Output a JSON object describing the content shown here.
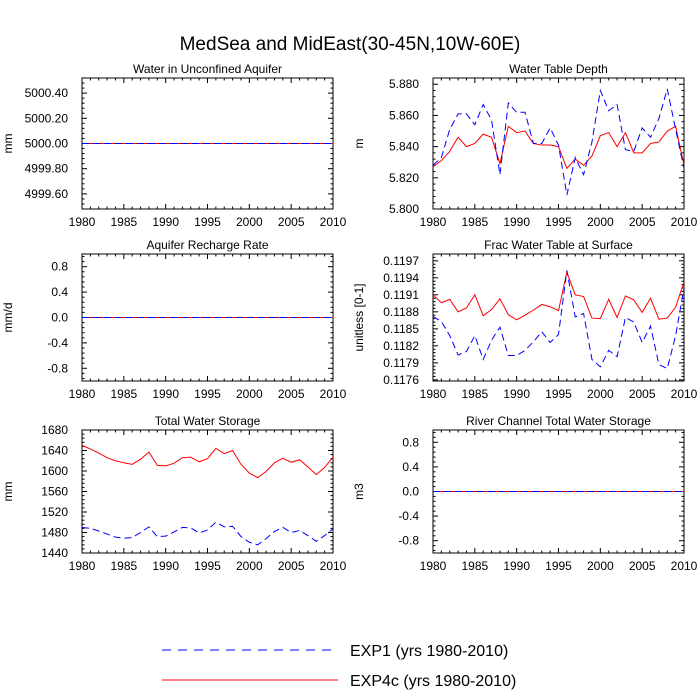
{
  "title": "MedSea and MidEast(30-45N,10W-60E)",
  "colors": {
    "exp1": "#0000ff",
    "exp4c": "#ff0000",
    "axis": "#000000"
  },
  "legend": {
    "items": [
      {
        "label": "EXP1 (yrs 1980-2010)",
        "color": "#0000ff",
        "style": "dashed"
      },
      {
        "label": "EXP4c (yrs 1980-2010)",
        "color": "#ff0000",
        "style": "solid"
      }
    ]
  },
  "chart_data": [
    {
      "type": "line",
      "title": "Water in Unconfined Aquifer",
      "xlabel": "",
      "ylabel": "mm",
      "xlim": [
        1980,
        2010
      ],
      "ylim": [
        4999.48,
        5000.52
      ],
      "xticks": [
        "1980",
        "1985",
        "1990",
        "1995",
        "2000",
        "2005",
        "2010"
      ],
      "yticks": [
        "4999.60",
        "4999.80",
        "5000.00",
        "5000.20",
        "5000.40"
      ],
      "x": [
        1980,
        2010
      ],
      "series": [
        {
          "name": "EXP1 (yrs 1980-2010)",
          "values": [
            5000.0,
            5000.0
          ]
        },
        {
          "name": "EXP4c (yrs 1980-2010)",
          "values": [
            5000.0,
            5000.0
          ]
        }
      ]
    },
    {
      "type": "line",
      "title": "Water Table Depth",
      "xlabel": "",
      "ylabel": "m",
      "xlim": [
        1980,
        2010
      ],
      "ylim": [
        5.8,
        5.884
      ],
      "xticks": [
        "1980",
        "1985",
        "1990",
        "1995",
        "2000",
        "2005",
        "2010"
      ],
      "yticks": [
        "5.800",
        "5.820",
        "5.840",
        "5.860",
        "5.880"
      ],
      "x": [
        1980,
        1981,
        1982,
        1983,
        1984,
        1985,
        1986,
        1987,
        1988,
        1989,
        1990,
        1991,
        1992,
        1993,
        1994,
        1995,
        1996,
        1997,
        1998,
        1999,
        2000,
        2001,
        2002,
        2003,
        2004,
        2005,
        2006,
        2007,
        2008,
        2009,
        2010
      ],
      "series": [
        {
          "name": "EXP1 (yrs 1980-2010)",
          "values": [
            5.828,
            5.833,
            5.851,
            5.861,
            5.861,
            5.854,
            5.867,
            5.857,
            5.822,
            5.868,
            5.862,
            5.862,
            5.842,
            5.842,
            5.852,
            5.841,
            5.809,
            5.833,
            5.822,
            5.843,
            5.876,
            5.863,
            5.867,
            5.838,
            5.837,
            5.852,
            5.846,
            5.858,
            5.877,
            5.851,
            5.826
          ]
        },
        {
          "name": "EXP4c (yrs 1980-2010)",
          "values": [
            5.827,
            5.831,
            5.837,
            5.846,
            5.84,
            5.842,
            5.848,
            5.846,
            5.829,
            5.853,
            5.849,
            5.85,
            5.842,
            5.841,
            5.841,
            5.84,
            5.826,
            5.832,
            5.828,
            5.834,
            5.847,
            5.849,
            5.84,
            5.849,
            5.836,
            5.836,
            5.842,
            5.843,
            5.85,
            5.853,
            5.828
          ]
        }
      ]
    },
    {
      "type": "line",
      "title": "Aquifer Recharge Rate",
      "xlabel": "",
      "ylabel": "mm/d",
      "xlim": [
        1980,
        2010
      ],
      "ylim": [
        -1.0,
        1.0
      ],
      "xticks": [
        "1980",
        "1985",
        "1990",
        "1995",
        "2000",
        "2005",
        "2010"
      ],
      "yticks": [
        "-0.8",
        "-0.4",
        "0.0",
        "0.4",
        "0.8"
      ],
      "x": [
        1980,
        2010
      ],
      "series": [
        {
          "name": "EXP1 (yrs 1980-2010)",
          "values": [
            0.0,
            0.0
          ]
        },
        {
          "name": "EXP4c (yrs 1980-2010)",
          "values": [
            0.0,
            0.0
          ]
        }
      ]
    },
    {
      "type": "line",
      "title": "Frac Water Table at Surface",
      "xlabel": "",
      "ylabel": "unitless [0-1]",
      "xlim": [
        1980,
        2010
      ],
      "ylim": [
        0.11758,
        0.11982
      ],
      "xticks": [
        "1980",
        "1985",
        "1990",
        "1995",
        "2000",
        "2005",
        "2010"
      ],
      "yticks": [
        "0.1176",
        "0.1179",
        "0.1182",
        "0.1185",
        "0.1188",
        "0.1191",
        "0.1194",
        "0.1197"
      ],
      "x": [
        1980,
        1981,
        1982,
        1983,
        1984,
        1985,
        1986,
        1987,
        1988,
        1989,
        1990,
        1991,
        1992,
        1993,
        1994,
        1995,
        1996,
        1997,
        1998,
        1999,
        2000,
        2001,
        2002,
        2003,
        2004,
        2005,
        2006,
        2007,
        2008,
        2009,
        2010
      ],
      "series": [
        {
          "name": "EXP1 (yrs 1980-2010)",
          "values": [
            0.11872,
            0.11863,
            0.11838,
            0.11804,
            0.1181,
            0.11838,
            0.11796,
            0.1183,
            0.11853,
            0.11803,
            0.11803,
            0.11812,
            0.11827,
            0.11845,
            0.11826,
            0.1184,
            0.11953,
            0.11871,
            0.11877,
            0.11796,
            0.11783,
            0.11812,
            0.11801,
            0.1187,
            0.11862,
            0.11826,
            0.11855,
            0.11787,
            0.1178,
            0.11838,
            0.11922
          ]
        },
        {
          "name": "EXP4c (yrs 1980-2010)",
          "values": [
            0.1191,
            0.11896,
            0.11902,
            0.1188,
            0.11887,
            0.1191,
            0.11873,
            0.11884,
            0.11903,
            0.11875,
            0.11866,
            0.11874,
            0.11883,
            0.11893,
            0.11889,
            0.11882,
            0.1195,
            0.1191,
            0.11907,
            0.11869,
            0.11868,
            0.11902,
            0.1187,
            0.11908,
            0.11901,
            0.11879,
            0.11904,
            0.11867,
            0.11869,
            0.11888,
            0.11933
          ]
        }
      ]
    },
    {
      "type": "line",
      "title": "Total Water Storage",
      "xlabel": "",
      "ylabel": "mm",
      "xlim": [
        1980,
        2010
      ],
      "ylim": [
        1440,
        1680
      ],
      "xticks": [
        "1980",
        "1985",
        "1990",
        "1995",
        "2000",
        "2005",
        "2010"
      ],
      "yticks": [
        "1440",
        "1480",
        "1520",
        "1560",
        "1600",
        "1640",
        "1680"
      ],
      "x": [
        1980,
        1981,
        1982,
        1983,
        1984,
        1985,
        1986,
        1987,
        1988,
        1989,
        1990,
        1991,
        1992,
        1993,
        1994,
        1995,
        1996,
        1997,
        1998,
        1999,
        2000,
        2001,
        2002,
        2003,
        2004,
        2005,
        2006,
        2007,
        2008,
        2009,
        2010
      ],
      "series": [
        {
          "name": "EXP1 (yrs 1980-2010)",
          "values": [
            1490,
            1488,
            1483,
            1477,
            1471,
            1469,
            1470,
            1480,
            1491,
            1472,
            1473,
            1481,
            1490,
            1489,
            1479,
            1485,
            1500,
            1491,
            1492,
            1472,
            1461,
            1456,
            1468,
            1482,
            1490,
            1480,
            1484,
            1474,
            1463,
            1474,
            1487
          ]
        },
        {
          "name": "EXP4c (yrs 1980-2010)",
          "values": [
            1650,
            1643,
            1635,
            1626,
            1620,
            1616,
            1613,
            1623,
            1637,
            1611,
            1610,
            1615,
            1626,
            1627,
            1618,
            1624,
            1644,
            1634,
            1640,
            1613,
            1596,
            1587,
            1599,
            1616,
            1625,
            1617,
            1622,
            1608,
            1593,
            1607,
            1627
          ]
        }
      ]
    },
    {
      "type": "line",
      "title": "River Channel Total Water Storage",
      "xlabel": "",
      "ylabel": "m3",
      "xlim": [
        1980,
        2010
      ],
      "ylim": [
        -1.0,
        1.0
      ],
      "xticks": [
        "1980",
        "1985",
        "1990",
        "1995",
        "2000",
        "2005",
        "2010"
      ],
      "yticks": [
        "-0.8",
        "-0.4",
        "0.0",
        "0.4",
        "0.8"
      ],
      "x": [
        1980,
        2010
      ],
      "series": [
        {
          "name": "EXP1 (yrs 1980-2010)",
          "values": [
            0.0,
            0.0
          ]
        },
        {
          "name": "EXP4c (yrs 1980-2010)",
          "values": [
            0.0,
            0.0
          ]
        }
      ]
    }
  ]
}
